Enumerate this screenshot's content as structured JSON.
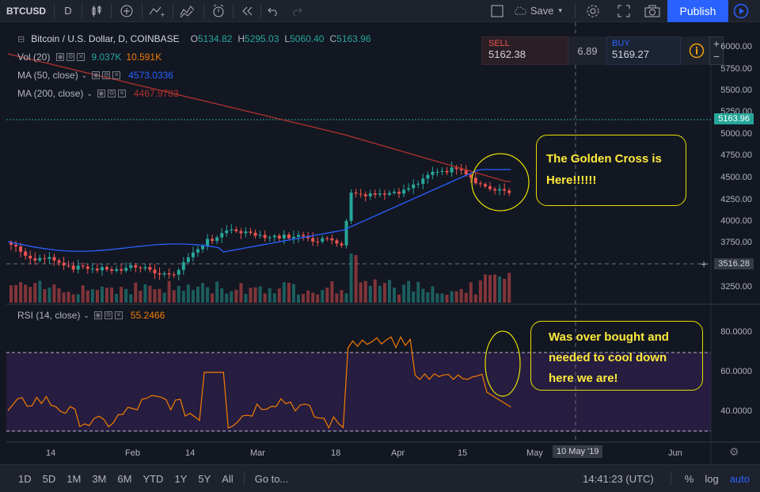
{
  "toolbar": {
    "symbol": "BTCUSD",
    "interval": "D",
    "save_label": "Save",
    "publish_label": "Publish"
  },
  "legend": {
    "main_title": "Bitcoin / U.S. Dollar, D, COINBASE",
    "o_label": "O",
    "o_value": "5134.82",
    "h_label": "H",
    "h_value": "5295.03",
    "l_label": "L",
    "l_value": "5060.40",
    "c_label": "C",
    "c_value": "5163.96",
    "vol_label": "Vol (20)",
    "vol_value1": "9.037K",
    "vol_value2": "10.591K",
    "ma50_label": "MA (50, close)",
    "ma50_value": "4573.0336",
    "ma200_label": "MA (200, close)",
    "ma200_value": "4467.9783",
    "rsi_label": "RSI (14, close)",
    "rsi_value": "55.2466"
  },
  "trade": {
    "sell_label": "SELL",
    "sell_price": "5162.38",
    "spread": "6.89",
    "buy_label": "BUY",
    "buy_price": "5169.27"
  },
  "price_axis": [
    "6000.00",
    "5750.00",
    "5500.00",
    "5250.00",
    "5000.00",
    "4750.00",
    "4500.00",
    "4250.00",
    "4000.00",
    "3750.00",
    "3250.00"
  ],
  "current_price": "5163.96",
  "crosshair_price": "3516.28",
  "rsi_axis": [
    "80.0000",
    "60.0000",
    "40.0000"
  ],
  "time_axis": [
    "14",
    "Feb",
    "14",
    "Mar",
    "18",
    "Apr",
    "15",
    "May",
    "Jun"
  ],
  "crosshair_date": "10 May '19",
  "annotations": {
    "golden_cross": "The Golden Cross is Here!!!!!!",
    "overbought_1": "Was over bought and",
    "overbought_2": "needed to cool down",
    "overbought_3": "here we are!"
  },
  "bottombar": {
    "ranges": [
      "1D",
      "5D",
      "1M",
      "3M",
      "6M",
      "YTD",
      "1Y",
      "5Y",
      "All"
    ],
    "goto": "Go to...",
    "time": "14:41:23 (UTC)",
    "percent": "%",
    "log": "log",
    "auto": "auto"
  },
  "colors": {
    "up": "#26a69a",
    "down": "#ef5350",
    "ma50": "#2962ff",
    "ma200": "#b0322f",
    "rsi": "#f57c00",
    "annotation": "#ffeb3b",
    "accent": "#2962ff"
  }
}
